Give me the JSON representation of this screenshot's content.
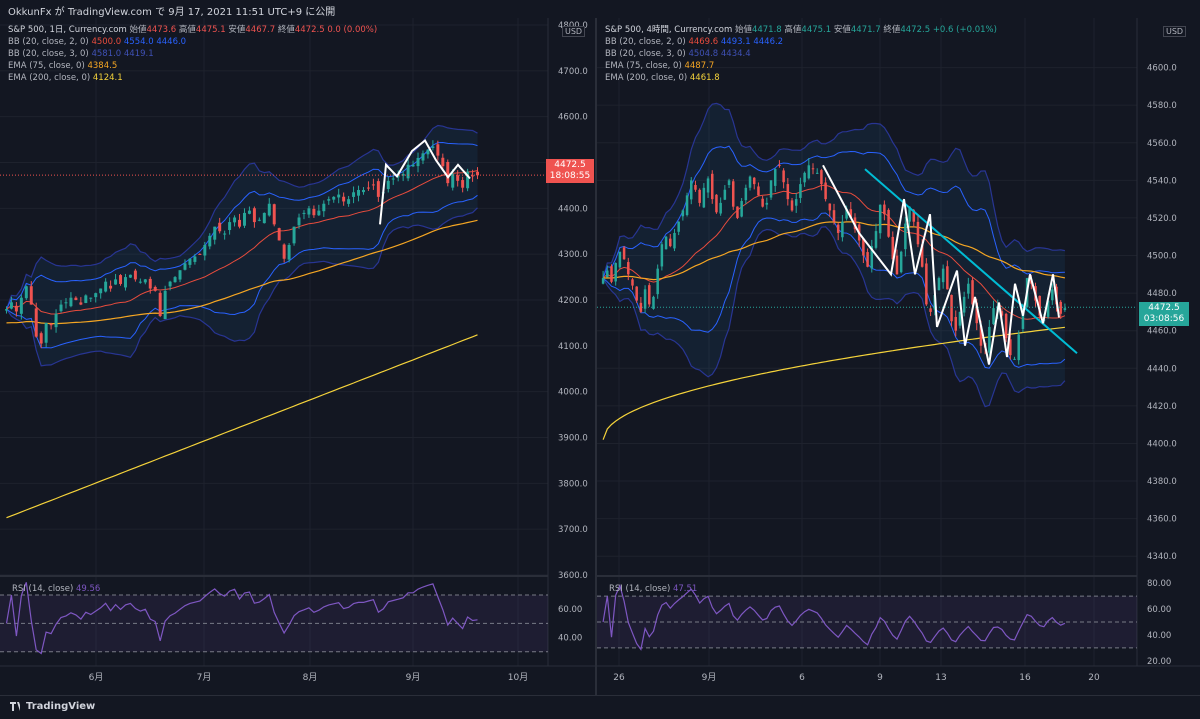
{
  "header": {
    "published": "OkkunFx が TradingView.com で 9月 17, 2021 11:51 UTC+9 に公開"
  },
  "footer": {
    "brand": "TradingView"
  },
  "colors": {
    "bg": "#131722",
    "grid": "#1e222d",
    "up": "#26a69a",
    "down": "#ef5350",
    "bb": "#2962ff",
    "bbmid": "#e84c3d",
    "ema75": "#f5a623",
    "ema200": "#f5d33b",
    "rsi": "#7e57c2",
    "trend": "#00bcd4",
    "zigzag": "#ffffff"
  },
  "chart_data": [
    {
      "type": "candlestick",
      "title": "S&P 500, 1日, Currency.com",
      "ohlc_labels": [
        "始値",
        "4473.6",
        "高値",
        "4475.1",
        "安値",
        "4467.7",
        "終値",
        "4472.5",
        "0.0 (0.00%)"
      ],
      "indicators": [
        {
          "name": "BB (20, close, 2, 0)",
          "values": [
            "4500.0",
            "4554.0",
            "4446.0"
          ]
        },
        {
          "name": "BB (20, close, 3, 0)",
          "values": [
            "4581.0",
            "4419.1"
          ]
        },
        {
          "name": "EMA (75, close, 0)",
          "value": "4384.5"
        },
        {
          "name": "EMA (200, close, 0)",
          "value": "4124.1"
        }
      ],
      "currency": "USD",
      "last_price": "4472.5",
      "countdown": "18:08:55",
      "ylim": [
        3600,
        4800
      ],
      "y_ticks": [
        "4800.0",
        "4700.0",
        "4600.0",
        "4500.0",
        "4400.0",
        "4300.0",
        "4200.0",
        "4100.0",
        "4000.0",
        "3900.0",
        "3800.0",
        "3700.0",
        "3600.0"
      ],
      "x_ticks": [
        "6月",
        "7月",
        "8月",
        "9月",
        "10月"
      ],
      "rsi": {
        "label": "RSI (14, close)",
        "value": "49.56",
        "ticks": [
          "60.00",
          "40.00"
        ]
      },
      "close": [
        4180,
        4195,
        4175,
        4205,
        4230,
        4190,
        4120,
        4105,
        4150,
        4145,
        4170,
        4190,
        4195,
        4205,
        4200,
        4190,
        4210,
        4205,
        4215,
        4225,
        4240,
        4225,
        4245,
        4235,
        4250,
        4255,
        4245,
        4240,
        4245,
        4225,
        4220,
        4165,
        4220,
        4240,
        4250,
        4265,
        4280,
        4290,
        4295,
        4300,
        4320,
        4340,
        4360,
        4350,
        4345,
        4370,
        4380,
        4360,
        4390,
        4395,
        4370,
        4375,
        4390,
        4410,
        4365,
        4330,
        4290,
        4320,
        4360,
        4380,
        4390,
        4400,
        4385,
        4395,
        4410,
        4420,
        4425,
        4430,
        4415,
        4420,
        4435,
        4440,
        4440,
        4445,
        4450,
        4425,
        4435,
        4460,
        4465,
        4470,
        4475,
        4495,
        4495,
        4510,
        4520,
        4528,
        4535,
        4515,
        4492,
        4455,
        4475,
        4460,
        4445,
        4480,
        4470,
        4472
      ]
    },
    {
      "type": "candlestick",
      "title": "S&P 500, 4時間, Currency.com",
      "ohlc_labels": [
        "始値",
        "4471.8",
        "高値",
        "4475.1",
        "安値",
        "4471.7",
        "終値",
        "4472.5",
        "+0.6 (+0.01%)"
      ],
      "indicators": [
        {
          "name": "BB (20, close, 2, 0)",
          "values": [
            "4469.6",
            "4493.1",
            "4446.2"
          ]
        },
        {
          "name": "BB (20, close, 3, 0)",
          "values": [
            "4504.8",
            "4434.4"
          ]
        },
        {
          "name": "EMA (75, close, 0)",
          "value": "4487.7"
        },
        {
          "name": "EMA (200, close, 0)",
          "value": "4461.8"
        }
      ],
      "currency": "USD",
      "last_price": "4472.5",
      "countdown": "03:08:56",
      "ylim": [
        4330,
        4620
      ],
      "y_ticks": [
        "4600.0",
        "4580.0",
        "4560.0",
        "4540.0",
        "4520.0",
        "4500.0",
        "4480.0",
        "4460.0",
        "4440.0",
        "4420.0",
        "4400.0",
        "4380.0",
        "4360.0",
        "4340.0"
      ],
      "x_ticks": [
        "26",
        "9月",
        "6",
        "9",
        "13",
        "16",
        "20"
      ],
      "rsi": {
        "label": "RSI (14, close)",
        "value": "47.51",
        "ticks": [
          "80.00",
          "60.00",
          "40.00",
          "20.00"
        ]
      },
      "close": [
        4488,
        4492,
        4486,
        4496,
        4502,
        4498,
        4490,
        4484,
        4476,
        4470,
        4482,
        4474,
        4478,
        4493,
        4506,
        4510,
        4505,
        4512,
        4518,
        4524,
        4532,
        4540,
        4535,
        4528,
        4536,
        4541,
        4530,
        4523,
        4528,
        4535,
        4540,
        4526,
        4520,
        4529,
        4536,
        4542,
        4538,
        4532,
        4526,
        4528,
        4540,
        4546,
        4548,
        4539,
        4530,
        4524,
        4530,
        4538,
        4544,
        4548,
        4546,
        4544,
        4538,
        4530,
        4524,
        4518,
        4512,
        4518,
        4525,
        4520,
        4514,
        4508,
        4500,
        4494,
        4505,
        4513,
        4527,
        4522,
        4510,
        4498,
        4490,
        4502,
        4517,
        4526,
        4518,
        4506,
        4494,
        4474,
        4470,
        4479,
        4488,
        4493,
        4482,
        4465,
        4460,
        4470,
        4478,
        4485,
        4474,
        4464,
        4452,
        4451,
        4462,
        4472,
        4473,
        4468,
        4456,
        4447,
        4445,
        4458,
        4472,
        4488,
        4485,
        4476,
        4468,
        4466,
        4476,
        4482,
        4474,
        4469,
        4472
      ]
    }
  ]
}
